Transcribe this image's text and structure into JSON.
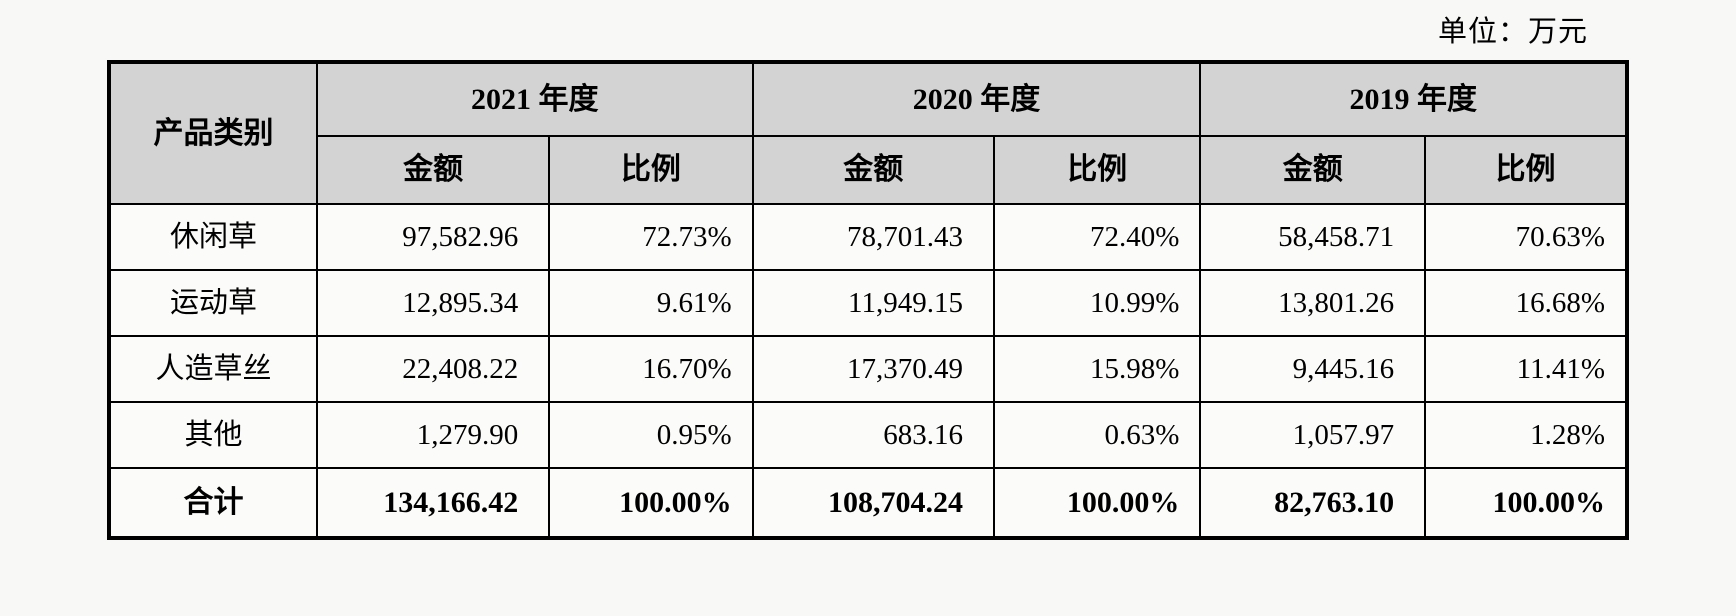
{
  "unit_label": "单位：万元",
  "table": {
    "product_header": "产品类别",
    "year_groups": [
      {
        "year": "2021 年度",
        "amount_label": "金额",
        "ratio_label": "比例"
      },
      {
        "year": "2020 年度",
        "amount_label": "金额",
        "ratio_label": "比例"
      },
      {
        "year": "2019 年度",
        "amount_label": "金额",
        "ratio_label": "比例"
      }
    ],
    "rows": [
      {
        "category": "休闲草",
        "values": [
          "97,582.96",
          "72.73%",
          "78,701.43",
          "72.40%",
          "58,458.71",
          "70.63%"
        ]
      },
      {
        "category": "运动草",
        "values": [
          "12,895.34",
          "9.61%",
          "11,949.15",
          "10.99%",
          "13,801.26",
          "16.68%"
        ]
      },
      {
        "category": "人造草丝",
        "values": [
          "22,408.22",
          "16.70%",
          "17,370.49",
          "15.98%",
          "9,445.16",
          "11.41%"
        ]
      },
      {
        "category": "其他",
        "values": [
          "1,279.90",
          "0.95%",
          "683.16",
          "0.63%",
          "1,057.97",
          "1.28%"
        ]
      }
    ],
    "total_row": {
      "category": "合计",
      "values": [
        "134,166.42",
        "100.00%",
        "108,704.24",
        "100.00%",
        "82,763.10",
        "100.00%"
      ]
    },
    "colors": {
      "header_bg": "#d3d3d3",
      "body_bg": "#fbfbfa",
      "border": "#000000",
      "page_bg": "#f8f8f7"
    }
  }
}
